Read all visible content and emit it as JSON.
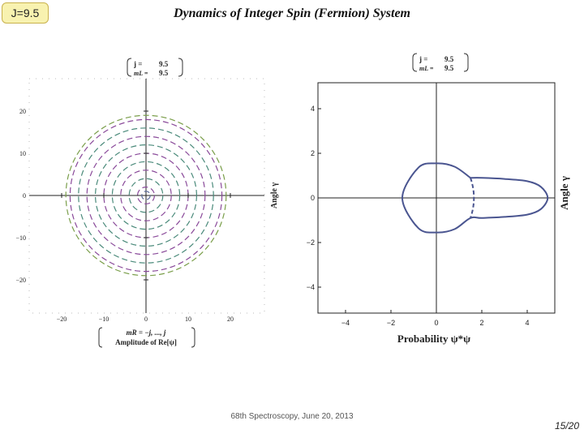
{
  "slide": {
    "badge": "J=9.5",
    "title": "Dynamics of Integer Spin (Fermion) System",
    "footer": "68th Spectroscopy, June 20, 2013",
    "page": "15/20"
  },
  "chart_data": [
    {
      "type": "parametric",
      "legend": {
        "j_label": "j =",
        "j_value": "9.5",
        "m_label": "mL =",
        "m_value": "9.5"
      },
      "xlabel_line1": "mR = −j, ..., j",
      "xlabel_line2": "Amplitude of Re[ψ]",
      "ylabel": "Angle γ",
      "xlim": [
        -28,
        28
      ],
      "ylim": [
        -27,
        27
      ],
      "xticks": [
        "−20",
        "−10",
        "0",
        "10",
        "20"
      ],
      "yticks": [
        "20",
        "10",
        "0",
        "−10",
        "−20"
      ],
      "circles": [
        {
          "r": 19,
          "color": "#7a9e4a"
        },
        {
          "r": 18,
          "color": "#8a4a9a"
        },
        {
          "r": 16,
          "color": "#4a8a7a"
        },
        {
          "r": 14,
          "color": "#8a4a9a"
        },
        {
          "r": 12,
          "color": "#4a8a7a"
        },
        {
          "r": 10,
          "color": "#8a4a9a"
        },
        {
          "r": 8,
          "color": "#4a8a7a"
        },
        {
          "r": 6,
          "color": "#8a4a9a"
        },
        {
          "r": 4,
          "color": "#4a8a7a"
        },
        {
          "r": 2,
          "color": "#8a4a9a"
        },
        {
          "r": 1,
          "color": "#5a6a9a"
        }
      ]
    },
    {
      "type": "line",
      "legend": {
        "j_label": "j =",
        "j_value": "9.5",
        "m_label": "mL =",
        "m_value": "9.5"
      },
      "xlabel": "Probability ψ*ψ",
      "ylabel": "Angle γ",
      "xlim": [
        -5,
        5.3
      ],
      "ylim": [
        -5.2,
        5.2
      ],
      "xticks": [
        "−4",
        "−2",
        "0",
        "2",
        "4"
      ],
      "yticks": [
        "4",
        "2",
        "0",
        "−2",
        "−4"
      ],
      "series": [
        {
          "color": "#4a5590",
          "x": [
            1.5,
            0.8,
            0.0,
            -0.8,
            -1.5,
            -0.8,
            0.0,
            0.8,
            1.5,
            2.0,
            3.0,
            4.0,
            4.6,
            4.9,
            4.6,
            4.0,
            3.0,
            2.0,
            1.5
          ],
          "y": [
            0.9,
            1.4,
            1.55,
            1.35,
            0.0,
            -1.35,
            -1.55,
            -1.4,
            -0.9,
            -0.9,
            -0.85,
            -0.75,
            -0.5,
            0.0,
            0.5,
            0.75,
            0.85,
            0.9,
            0.9
          ]
        }
      ],
      "dashed_arc": {
        "x": [
          1.5,
          1.52,
          1.5
        ],
        "y": [
          0.9,
          0.0,
          -0.9
        ]
      }
    }
  ]
}
